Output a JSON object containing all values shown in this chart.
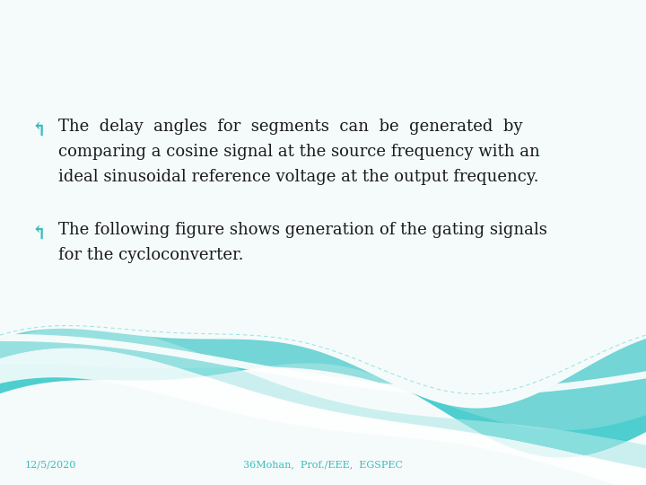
{
  "bullet1_line1": "The  delay  angles  for  segments  can  be  generated  by",
  "bullet1_line2": "comparing a cosine signal at the source frequency with an",
  "bullet1_line3": "ideal sinusoidal reference voltage at the output frequency.",
  "bullet2_line1": "The following figure shows generation of the gating signals",
  "bullet2_line2": "for the cycloconverter.",
  "footer_left": "12/5/2020",
  "footer_center": "36Mohan,  Prof./EEE,  EGSPEC",
  "text_color": "#1a1a1a",
  "teal_color": "#3bbcbc",
  "footer_color": "#3bbcbc",
  "bg_color": "#f5fbfb",
  "wave_teal_dark": "#4ecece",
  "wave_teal_mid": "#7dd8d8",
  "wave_teal_light": "#b0e8e8",
  "wave_white": "#ffffff",
  "bullet_symbol": "↰",
  "font_size_body": 13,
  "font_size_footer": 8
}
